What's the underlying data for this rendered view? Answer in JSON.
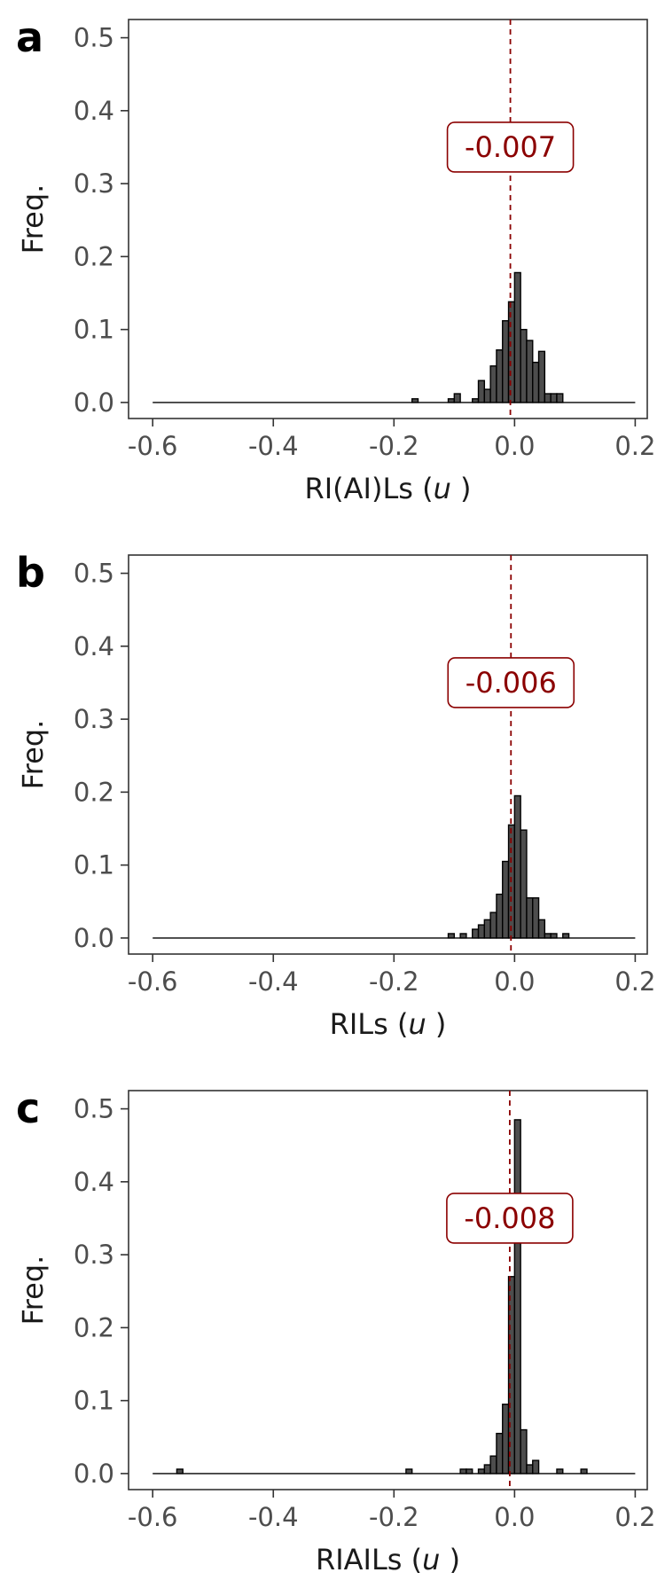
{
  "chart_data": [
    {
      "type": "bar",
      "panel": "a",
      "xlabel": "RI(AI)Ls",
      "xlabel_unit": "u",
      "ylabel": "Freq.",
      "xlim": [
        -0.64,
        0.22
      ],
      "ylim": [
        -0.022,
        0.525
      ],
      "xticks": [
        "-0.6",
        "-0.4",
        "-0.2",
        "0.0",
        "0.2"
      ],
      "yticks": [
        "0.0",
        "0.1",
        "0.2",
        "0.3",
        "0.4",
        "0.5"
      ],
      "bin_width": 0.01,
      "baseline_range": [
        -0.6,
        0.2
      ],
      "bins": [
        -0.165,
        -0.105,
        -0.095,
        -0.065,
        -0.055,
        -0.045,
        -0.035,
        -0.025,
        -0.015,
        -0.005,
        0.005,
        0.015,
        0.025,
        0.035,
        0.045,
        0.055,
        0.065,
        0.075
      ],
      "freq": [
        0.005,
        0.005,
        0.012,
        0.005,
        0.03,
        0.018,
        0.05,
        0.072,
        0.112,
        0.138,
        0.178,
        0.1,
        0.085,
        0.055,
        0.07,
        0.012,
        0.012,
        0.012
      ],
      "mean_line": -0.007,
      "annotation": "-0.007",
      "grid": false
    },
    {
      "type": "bar",
      "panel": "b",
      "xlabel": "RILs",
      "xlabel_unit": "u",
      "ylabel": "Freq.",
      "xlim": [
        -0.64,
        0.22
      ],
      "ylim": [
        -0.022,
        0.525
      ],
      "xticks": [
        "-0.6",
        "-0.4",
        "-0.2",
        "0.0",
        "0.2"
      ],
      "yticks": [
        "0.0",
        "0.1",
        "0.2",
        "0.3",
        "0.4",
        "0.5"
      ],
      "bin_width": 0.01,
      "baseline_range": [
        -0.6,
        0.2
      ],
      "bins": [
        -0.105,
        -0.085,
        -0.065,
        -0.055,
        -0.045,
        -0.035,
        -0.025,
        -0.015,
        -0.005,
        0.005,
        0.015,
        0.025,
        0.035,
        0.045,
        0.055,
        0.065,
        0.085
      ],
      "freq": [
        0.006,
        0.006,
        0.012,
        0.018,
        0.025,
        0.035,
        0.06,
        0.105,
        0.155,
        0.195,
        0.148,
        0.055,
        0.055,
        0.025,
        0.006,
        0.006,
        0.006
      ],
      "mean_line": -0.006,
      "annotation": "-0.006",
      "grid": false
    },
    {
      "type": "bar",
      "panel": "c",
      "xlabel": "RIAILs",
      "xlabel_unit": "u",
      "ylabel": "Freq.",
      "xlim": [
        -0.64,
        0.22
      ],
      "ylim": [
        -0.022,
        0.525
      ],
      "xticks": [
        "-0.6",
        "-0.4",
        "-0.2",
        "0.0",
        "0.2"
      ],
      "yticks": [
        "0.0",
        "0.1",
        "0.2",
        "0.3",
        "0.4",
        "0.5"
      ],
      "bin_width": 0.01,
      "baseline_range": [
        -0.6,
        0.2
      ],
      "bins": [
        -0.555,
        -0.175,
        -0.085,
        -0.075,
        -0.055,
        -0.045,
        -0.035,
        -0.025,
        -0.015,
        -0.005,
        0.005,
        0.015,
        0.025,
        0.035,
        0.075,
        0.115
      ],
      "freq": [
        0.006,
        0.006,
        0.006,
        0.006,
        0.006,
        0.012,
        0.024,
        0.055,
        0.095,
        0.27,
        0.485,
        0.06,
        0.012,
        0.018,
        0.006,
        0.006
      ],
      "mean_line": -0.008,
      "annotation": "-0.008",
      "grid": false
    }
  ],
  "colors": {
    "bar_fill": "#4d4d4d",
    "bar_stroke": "#000000",
    "mean_line": "#8b0000",
    "annotation_text": "#8b0000",
    "annotation_border": "#8b0000",
    "axis_text": "#4d4d4d",
    "axis_line": "#333333"
  }
}
